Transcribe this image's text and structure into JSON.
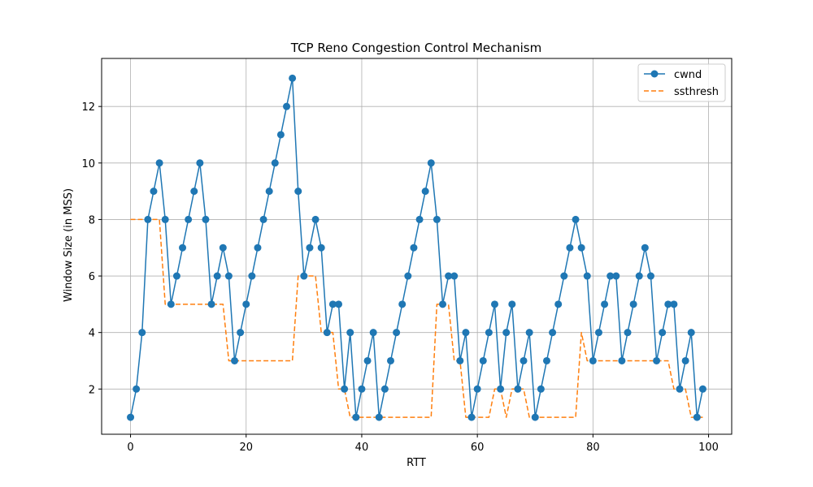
{
  "chart_data": {
    "type": "line",
    "title": "TCP Reno Congestion Control Mechanism",
    "xlabel": "RTT",
    "ylabel": "Window Size (in MSS)",
    "xlim": [
      -5,
      104
    ],
    "ylim": [
      0.4,
      13.7
    ],
    "xticks": [
      0,
      20,
      40,
      60,
      80,
      100
    ],
    "yticks": [
      2,
      4,
      6,
      8,
      10,
      12
    ],
    "grid": true,
    "legend_position": "top-right",
    "series": [
      {
        "name": "cwnd",
        "style": "solid",
        "marker": "circle",
        "color": "#1f77b4",
        "x": [
          0,
          1,
          2,
          3,
          4,
          5,
          6,
          7,
          8,
          9,
          10,
          11,
          12,
          13,
          14,
          15,
          16,
          17,
          18,
          19,
          20,
          21,
          22,
          23,
          24,
          25,
          26,
          27,
          28,
          29,
          30,
          31,
          32,
          33,
          34,
          35,
          36,
          37,
          38,
          39,
          40,
          41,
          42,
          43,
          44,
          45,
          46,
          47,
          48,
          49,
          50,
          51,
          52,
          53,
          54,
          55,
          56,
          57,
          58,
          59,
          60,
          61,
          62,
          63,
          64,
          65,
          66,
          67,
          68,
          69,
          70,
          71,
          72,
          73,
          74,
          75,
          76,
          77,
          78,
          79,
          80,
          81,
          82,
          83,
          84,
          85,
          86,
          87,
          88,
          89,
          90,
          91,
          92,
          93,
          94,
          95,
          96,
          97,
          98,
          99
        ],
        "y": [
          1,
          2,
          4,
          8,
          9,
          10,
          8,
          5,
          6,
          7,
          8,
          9,
          10,
          8,
          5,
          6,
          7,
          6,
          3,
          4,
          5,
          6,
          7,
          8,
          9,
          10,
          11,
          12,
          13,
          9,
          6,
          7,
          8,
          7,
          4,
          5,
          5,
          2,
          4,
          1,
          2,
          3,
          4,
          1,
          2,
          3,
          4,
          5,
          6,
          7,
          8,
          9,
          10,
          8,
          5,
          6,
          6,
          3,
          4,
          1,
          2,
          3,
          4,
          5,
          2,
          4,
          5,
          2,
          3,
          4,
          1,
          2,
          3,
          4,
          5,
          6,
          7,
          8,
          7,
          6,
          3,
          4,
          5,
          6,
          6,
          3,
          4,
          5,
          6,
          7,
          6,
          3,
          4,
          5,
          5,
          2,
          3,
          4,
          1,
          2
        ]
      },
      {
        "name": "ssthresh",
        "style": "dashed",
        "marker": "none",
        "color": "#ff7f0e",
        "x": [
          0,
          1,
          2,
          3,
          4,
          5,
          6,
          7,
          8,
          9,
          10,
          11,
          12,
          13,
          14,
          15,
          16,
          17,
          18,
          19,
          20,
          21,
          22,
          23,
          24,
          25,
          26,
          27,
          28,
          29,
          30,
          31,
          32,
          33,
          34,
          35,
          36,
          37,
          38,
          39,
          40,
          41,
          42,
          43,
          44,
          45,
          46,
          47,
          48,
          49,
          50,
          51,
          52,
          53,
          54,
          55,
          56,
          57,
          58,
          59,
          60,
          61,
          62,
          63,
          64,
          65,
          66,
          67,
          68,
          69,
          70,
          71,
          72,
          73,
          74,
          75,
          76,
          77,
          78,
          79,
          80,
          81,
          82,
          83,
          84,
          85,
          86,
          87,
          88,
          89,
          90,
          91,
          92,
          93,
          94,
          95,
          96,
          97,
          98,
          99
        ],
        "y": [
          8,
          8,
          8,
          8,
          8,
          8,
          5,
          5,
          5,
          5,
          5,
          5,
          5,
          5,
          5,
          5,
          5,
          3,
          3,
          3,
          3,
          3,
          3,
          3,
          3,
          3,
          3,
          3,
          3,
          6,
          6,
          6,
          6,
          4,
          4,
          4,
          2,
          2,
          1,
          1,
          1,
          1,
          1,
          1,
          1,
          1,
          1,
          1,
          1,
          1,
          1,
          1,
          1,
          5,
          5,
          5,
          3,
          3,
          1,
          1,
          1,
          1,
          1,
          2,
          2,
          1,
          2,
          2,
          2,
          1,
          1,
          1,
          1,
          1,
          1,
          1,
          1,
          1,
          4,
          3,
          3,
          3,
          3,
          3,
          3,
          3,
          3,
          3,
          3,
          3,
          3,
          3,
          3,
          3,
          2,
          2,
          2,
          1,
          1,
          1
        ]
      }
    ]
  }
}
